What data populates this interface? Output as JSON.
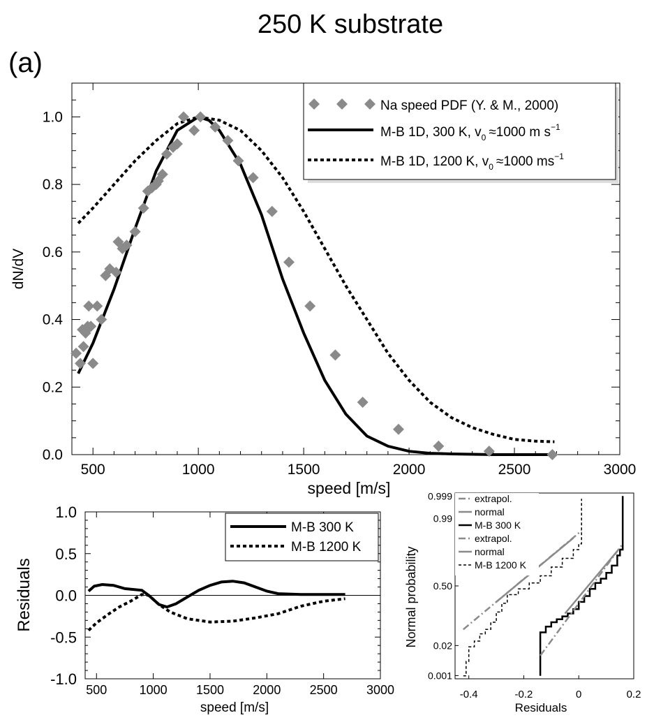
{
  "figure": {
    "title": "250 K substrate",
    "panel_label": "(a)"
  },
  "colors": {
    "data_marker": "#8a8a8a",
    "line": "#000000",
    "fit_line": "#8a8a8a",
    "background": "#ffffff"
  },
  "chart_data": [
    {
      "id": "main",
      "type": "line",
      "title": "",
      "xlabel": "speed [m/s]",
      "ylabel": "dN/dV",
      "xlim": [
        400,
        3000
      ],
      "ylim": [
        0.0,
        1.1
      ],
      "xticks": [
        500,
        1000,
        1500,
        2000,
        2500,
        3000
      ],
      "yticks": [
        0.0,
        0.2,
        0.4,
        0.6,
        0.8,
        1.0
      ],
      "ytick_labels": [
        "0.0",
        "0.2",
        "0.4",
        "0.6",
        "0.8",
        "1.0"
      ],
      "legend_position": "top-right",
      "series": [
        {
          "name": "Na speed PDF (Y. & M., 2000)",
          "style": "diamond",
          "x": [
            420,
            440,
            450,
            455,
            465,
            470,
            475,
            480,
            490,
            500,
            520,
            540,
            560,
            580,
            610,
            620,
            640,
            660,
            700,
            740,
            760,
            780,
            800,
            810,
            830,
            850,
            880,
            900,
            930,
            980,
            1010,
            1080,
            1140,
            1190,
            1260,
            1350,
            1430,
            1530,
            1650,
            1780,
            1950,
            2140,
            2380,
            2680
          ],
          "y": [
            0.3,
            0.27,
            0.37,
            0.32,
            0.36,
            0.37,
            0.38,
            0.44,
            0.38,
            0.27,
            0.44,
            0.4,
            0.53,
            0.55,
            0.54,
            0.63,
            0.61,
            0.62,
            0.66,
            0.73,
            0.78,
            0.79,
            0.8,
            0.81,
            0.83,
            0.89,
            0.91,
            0.92,
            1.0,
            0.96,
            1.0,
            0.97,
            0.93,
            0.87,
            0.82,
            0.72,
            0.57,
            0.44,
            0.295,
            0.155,
            0.075,
            0.025,
            0.01,
            0.0
          ]
        },
        {
          "name": "M-B 1D, 300 K, v",
          "name_suffix": "≈1000 m s",
          "style": "solid",
          "x": [
            430,
            500,
            600,
            700,
            800,
            900,
            1000,
            1050,
            1100,
            1200,
            1300,
            1400,
            1500,
            1600,
            1700,
            1800,
            1900,
            2000,
            2100,
            2200,
            2300,
            2400,
            2500,
            2600,
            2690
          ],
          "y": [
            0.24,
            0.33,
            0.49,
            0.67,
            0.84,
            0.96,
            1.0,
            0.99,
            0.96,
            0.86,
            0.71,
            0.52,
            0.36,
            0.22,
            0.12,
            0.055,
            0.025,
            0.01,
            0.004,
            0.002,
            0.001,
            0.0,
            0.0,
            0.0,
            0.0
          ]
        },
        {
          "name": "M-B 1D, 1200 K, v",
          "name_suffix": "≈1000 ms",
          "style": "dotted",
          "x": [
            430,
            500,
            600,
            700,
            800,
            900,
            1000,
            1100,
            1200,
            1300,
            1400,
            1500,
            1600,
            1700,
            1800,
            1900,
            2000,
            2100,
            2200,
            2300,
            2400,
            2500,
            2600,
            2690
          ],
          "y": [
            0.685,
            0.73,
            0.8,
            0.87,
            0.93,
            0.98,
            1.0,
            0.99,
            0.96,
            0.9,
            0.82,
            0.72,
            0.61,
            0.5,
            0.4,
            0.3,
            0.22,
            0.155,
            0.11,
            0.08,
            0.06,
            0.045,
            0.04,
            0.038
          ]
        }
      ],
      "legend_sub": "0",
      "legend_sup": "−1"
    },
    {
      "id": "residuals",
      "type": "line",
      "title": "",
      "xlabel": "speed [m/s]",
      "ylabel": "Residuals",
      "xlim": [
        400,
        3000
      ],
      "ylim": [
        -1.0,
        1.0
      ],
      "xticks": [
        500,
        1000,
        1500,
        2000,
        2500,
        3000
      ],
      "yticks": [
        -1.0,
        -0.5,
        0.0,
        0.5,
        1.0
      ],
      "ytick_labels": [
        "-1.0",
        "-0.5",
        "0.0",
        "0.5",
        "1.0"
      ],
      "legend_position": "top-right",
      "series": [
        {
          "name": "M-B 300 K",
          "style": "solid",
          "x": [
            430,
            480,
            550,
            650,
            750,
            900,
            960,
            1050,
            1120,
            1200,
            1300,
            1400,
            1500,
            1600,
            1700,
            1800,
            1900,
            2000,
            2100,
            2300,
            2500,
            2690
          ],
          "y": [
            0.05,
            0.11,
            0.13,
            0.12,
            0.08,
            0.06,
            0.0,
            -0.11,
            -0.14,
            -0.1,
            -0.02,
            0.06,
            0.12,
            0.16,
            0.17,
            0.15,
            0.1,
            0.05,
            0.02,
            0.01,
            0.01,
            0.01
          ]
        },
        {
          "name": "M-B 1200 K",
          "style": "dotted",
          "x": [
            430,
            500,
            600,
            700,
            800,
            900,
            960,
            1050,
            1150,
            1300,
            1500,
            1700,
            1900,
            2100,
            2300,
            2500,
            2690
          ],
          "y": [
            -0.42,
            -0.33,
            -0.23,
            -0.14,
            -0.07,
            0.01,
            0.0,
            -0.11,
            -0.2,
            -0.28,
            -0.32,
            -0.31,
            -0.27,
            -0.22,
            -0.13,
            -0.07,
            -0.04
          ]
        }
      ]
    },
    {
      "id": "normal_probability",
      "type": "line",
      "title": "",
      "xlabel": "Residuals",
      "ylabel": "Normal probability",
      "xlim": [
        -0.45,
        0.2
      ],
      "ylim": [
        -3.2,
        3.2
      ],
      "xticks": [
        -0.4,
        -0.2,
        0.0,
        0.2
      ],
      "xtick_labels": [
        "-0.4",
        "-0.2",
        "0",
        "0.2"
      ],
      "ytick_probabilities": [
        0.001,
        0.02,
        0.5,
        0.99,
        0.999
      ],
      "ytick_labels": [
        "0.001",
        "0.02",
        "0.50",
        "0.99",
        "0.999"
      ],
      "legend_position": "top-left",
      "series": [
        {
          "name": "extrapol.",
          "style": "dashdot-gray",
          "x": [
            -0.42,
            0.01
          ],
          "y": [
            -1.5,
            1.9
          ]
        },
        {
          "name": "normal",
          "style": "solid-gray",
          "x": [
            -0.3,
            -0.02
          ],
          "y": [
            -0.55,
            1.65
          ]
        },
        {
          "name": "M-B 300 K",
          "style": "solid",
          "x": [
            -0.14,
            -0.14,
            -0.12,
            -0.1,
            -0.08,
            -0.06,
            -0.04,
            -0.02,
            0.0,
            0.02,
            0.04,
            0.06,
            0.08,
            0.1,
            0.12,
            0.14,
            0.15,
            0.16,
            0.16
          ],
          "y": [
            -3.1,
            -1.6,
            -1.4,
            -1.25,
            -1.15,
            -1.05,
            -0.95,
            -0.8,
            -0.55,
            -0.35,
            -0.1,
            0.1,
            0.25,
            0.45,
            0.7,
            1.05,
            1.25,
            1.6,
            3.1
          ]
        },
        {
          "name": "extrapol.",
          "style": "dashdot-gray",
          "x": [
            -0.14,
            0.16
          ],
          "y": [
            -2.4,
            1.45
          ]
        },
        {
          "name": "normal",
          "style": "solid-gray",
          "x": [
            -0.05,
            0.14
          ],
          "y": [
            -0.95,
            1.2
          ]
        },
        {
          "name": "M-B 1200 K",
          "style": "dashed",
          "x": [
            -0.42,
            -0.41,
            -0.4,
            -0.38,
            -0.36,
            -0.34,
            -0.32,
            -0.3,
            -0.28,
            -0.26,
            -0.22,
            -0.18,
            -0.14,
            -0.1,
            -0.06,
            -0.02,
            0.0,
            0.01,
            0.01
          ],
          "y": [
            -3.1,
            -2.6,
            -2.1,
            -1.9,
            -1.65,
            -1.5,
            -1.25,
            -0.9,
            -0.6,
            -0.3,
            -0.1,
            0.1,
            0.35,
            0.65,
            0.95,
            1.25,
            1.45,
            1.8,
            3.0
          ]
        }
      ]
    }
  ]
}
